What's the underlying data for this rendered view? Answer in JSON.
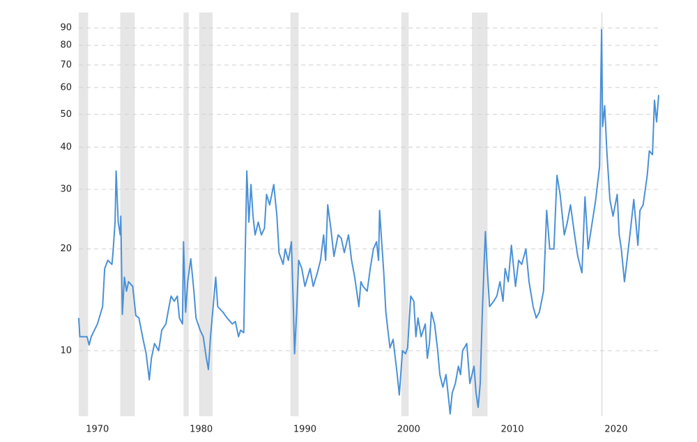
{
  "chart_data": {
    "type": "line",
    "log_scale": true,
    "grid": true,
    "color": "#4a90d6",
    "shade_color": "#e6e6e6",
    "xlim": [
      1968.2,
      2024.1
    ],
    "xticks": [
      1970,
      1980,
      1990,
      2000,
      2010,
      2020
    ],
    "ylim": [
      6.4,
      100
    ],
    "yticks": [
      10,
      20,
      30,
      40,
      50,
      60,
      70,
      80,
      90
    ],
    "shaded_periods": [
      [
        1968.2,
        1969.1
      ],
      [
        1972.2,
        1973.6
      ],
      [
        1978.3,
        1978.8
      ],
      [
        1979.8,
        1981.1
      ],
      [
        1988.6,
        1989.4
      ],
      [
        1999.3,
        2000.0
      ],
      [
        2006.1,
        2007.6
      ],
      [
        2018.55,
        2018.7
      ]
    ],
    "x": [
      1968.2,
      1968.3,
      1969.0,
      1969.2,
      1969.4,
      1970.0,
      1970.5,
      1970.7,
      1971.0,
      1971.4,
      1971.5,
      1971.7,
      1971.8,
      1972.0,
      1972.2,
      1972.25,
      1972.4,
      1972.6,
      1972.8,
      1973.0,
      1973.4,
      1973.7,
      1974.0,
      1974.4,
      1974.7,
      1975.0,
      1975.2,
      1975.5,
      1975.9,
      1976.2,
      1976.6,
      1976.9,
      1977.1,
      1977.4,
      1977.7,
      1977.9,
      1978.2,
      1978.3,
      1978.5,
      1978.7,
      1979.0,
      1979.3,
      1979.5,
      1979.9,
      1980.2,
      1980.5,
      1980.7,
      1980.9,
      1981.2,
      1981.4,
      1981.6,
      1982.1,
      1982.5,
      1983.0,
      1983.3,
      1983.6,
      1983.8,
      1984.1,
      1984.4,
      1984.6,
      1984.8,
      1985.0,
      1985.2,
      1985.5,
      1985.8,
      1986.1,
      1986.3,
      1986.6,
      1987.0,
      1987.3,
      1987.5,
      1987.9,
      1988.1,
      1988.4,
      1988.7,
      1988.9,
      1989.0,
      1989.2,
      1989.4,
      1989.7,
      1990.0,
      1990.5,
      1990.8,
      1991.2,
      1991.5,
      1991.8,
      1992.0,
      1992.2,
      1992.5,
      1992.8,
      1993.2,
      1993.5,
      1993.8,
      1994.2,
      1994.5,
      1994.8,
      1995.2,
      1995.4,
      1995.6,
      1996.0,
      1996.3,
      1996.6,
      1996.9,
      1997.1,
      1997.2,
      1997.4,
      1997.6,
      1997.8,
      1998.0,
      1998.2,
      1998.5,
      1998.9,
      1999.1,
      1999.4,
      1999.7,
      1999.9,
      2000.2,
      2000.5,
      2000.7,
      2000.9,
      2001.2,
      2001.6,
      2001.8,
      2002.0,
      2002.2,
      2002.5,
      2002.8,
      2003.0,
      2003.3,
      2003.6,
      2003.9,
      2004.0,
      2004.2,
      2004.5,
      2004.8,
      2005.0,
      2005.2,
      2005.6,
      2005.9,
      2006.3,
      2006.5,
      2006.7,
      2006.9,
      2007.1,
      2007.3,
      2007.4,
      2007.6,
      2007.8,
      2008.2,
      2008.5,
      2008.8,
      2009.1,
      2009.3,
      2009.6,
      2009.9,
      2010.3,
      2010.6,
      2010.9,
      2011.3,
      2011.6,
      2012.0,
      2012.3,
      2012.6,
      2013.0,
      2013.3,
      2013.6,
      2014.0,
      2014.3,
      2014.6,
      2015.0,
      2015.3,
      2015.6,
      2016.0,
      2016.3,
      2016.7,
      2017.0,
      2017.3,
      2017.7,
      2018.0,
      2018.4,
      2018.6,
      2018.7,
      2018.9,
      2019.1,
      2019.4,
      2019.7,
      2020.1,
      2020.3,
      2020.5,
      2020.8,
      2021.0,
      2021.4,
      2021.7,
      2022.1,
      2022.3,
      2022.6,
      2023.0,
      2023.2,
      2023.5,
      2023.7,
      2023.9,
      2024.1
    ],
    "values": [
      12.5,
      11.0,
      11.0,
      10.4,
      11.0,
      12.0,
      13.5,
      17.5,
      18.5,
      18.0,
      19.5,
      24,
      34,
      24,
      22,
      25,
      12.8,
      16.5,
      15,
      16,
      15.5,
      12.7,
      12.5,
      10.8,
      9.8,
      8.2,
      9.5,
      10.5,
      10,
      11.5,
      12,
      13.5,
      14.5,
      14,
      14.5,
      12.5,
      12,
      21,
      13,
      16,
      18.7,
      15,
      12.5,
      11.5,
      11,
      9.5,
      8.8,
      11,
      14,
      16.5,
      13.5,
      13,
      12.5,
      12,
      12.2,
      11,
      11.5,
      11.3,
      34,
      24,
      31,
      25,
      22,
      24,
      22,
      23,
      29,
      27,
      31,
      25,
      19.5,
      18,
      20,
      18.5,
      21,
      13,
      9.8,
      13,
      18.5,
      17.5,
      15.5,
      17.5,
      15.5,
      17,
      18.5,
      22,
      18.5,
      27,
      23,
      19,
      22,
      21.5,
      19.5,
      22,
      18.5,
      16.5,
      13.5,
      16,
      15.5,
      15,
      17.5,
      20,
      21,
      18.5,
      26,
      21,
      17,
      13,
      11.5,
      10.2,
      10.8,
      8.5,
      7.4,
      10,
      9.8,
      10.2,
      14.5,
      14,
      11,
      12.5,
      11,
      12,
      9.5,
      10.5,
      13,
      12,
      10,
      8.5,
      7.8,
      8.5,
      7,
      6.5,
      7.5,
      8,
      9,
      8.5,
      10,
      10.5,
      8,
      9,
      7.5,
      6.8,
      8,
      13,
      19,
      22.5,
      17,
      13.5,
      14,
      14.5,
      16,
      14,
      17.5,
      16,
      20.5,
      15.5,
      18.5,
      18,
      20,
      16,
      13.5,
      12.5,
      13,
      15,
      26,
      20,
      20,
      33,
      29,
      22,
      24,
      27,
      22,
      19,
      17,
      28.5,
      20,
      24,
      27.5,
      35,
      89,
      46,
      53,
      39,
      28,
      25,
      29,
      22,
      20,
      16,
      18,
      23,
      28,
      20.5,
      26,
      27,
      33,
      39,
      38,
      55,
      47.5,
      57
    ]
  }
}
